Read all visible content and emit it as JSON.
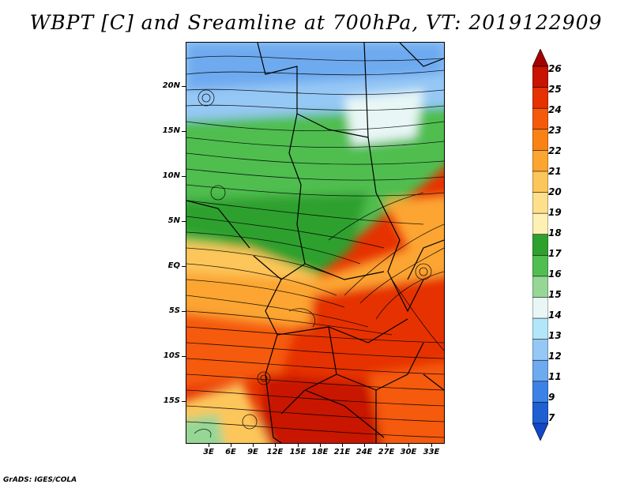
{
  "title": "WBPT [C] and Sreamline at 700hPa, VT: 2019122909",
  "credit": "GrADS: IGES/COLA",
  "axes": {
    "y_labels": [
      "20N",
      "15N",
      "10N",
      "5N",
      "EQ",
      "5S",
      "10S",
      "15S"
    ],
    "x_labels": [
      "3E",
      "6E",
      "9E",
      "12E",
      "15E",
      "18E",
      "21E",
      "24E",
      "27E",
      "30E",
      "33E"
    ]
  },
  "colorbar": {
    "labels": [
      "26",
      "25",
      "24",
      "23",
      "22",
      "21",
      "20",
      "19",
      "18",
      "17",
      "16",
      "15",
      "14",
      "13",
      "12",
      "11",
      "9",
      "7"
    ],
    "colors": [
      "#a50000",
      "#c81400",
      "#e63200",
      "#f55a0a",
      "#fa8214",
      "#fca530",
      "#fdc65a",
      "#fee08c",
      "#fff0b4",
      "#2da02d",
      "#50be50",
      "#96d796",
      "#e8f7f5",
      "#b4e6fa",
      "#96c8f5",
      "#6eaaf0",
      "#3c82e6",
      "#1e5fd2",
      "#1446c8"
    ]
  },
  "colors": {
    "land_cool": "#96c8f5",
    "land_green": "#50be50",
    "warm": "#fca530",
    "hot": "#e63200"
  }
}
